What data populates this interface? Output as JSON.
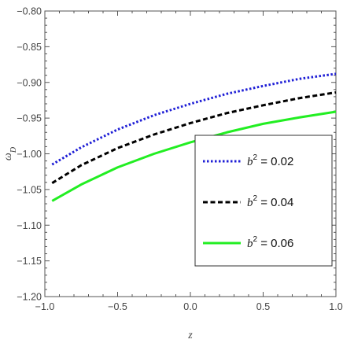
{
  "chart_data": {
    "type": "line",
    "xlabel": "z",
    "ylabel_symbol": "ω",
    "ylabel_subscript": "D",
    "xlim": [
      -1.0,
      1.0
    ],
    "ylim": [
      -1.2,
      -0.8
    ],
    "x_ticks": [
      -1.0,
      -0.5,
      0.0,
      0.5,
      1.0
    ],
    "x_tick_labels": [
      "−1.0",
      "−0.5",
      "0.0",
      "0.5",
      "1.0"
    ],
    "y_ticks": [
      -0.8,
      -0.85,
      -0.9,
      -0.95,
      -1.0,
      -1.05,
      -1.1,
      -1.15,
      -1.2
    ],
    "y_tick_labels": [
      "−0.80",
      "−0.85",
      "−0.90",
      "−0.95",
      "−1.00",
      "−1.05",
      "−1.10",
      "−1.15",
      "−1.20"
    ],
    "grid": false,
    "legend_position": "bottom-right",
    "series": [
      {
        "name": "b² = 0.02",
        "legend_var": "b",
        "legend_exp": "2",
        "legend_value": " = 0.02",
        "color": "#1f1fd6",
        "style": "dotted",
        "x": [
          -0.95,
          -0.75,
          -0.5,
          -0.25,
          0.0,
          0.25,
          0.5,
          0.75,
          1.0
        ],
        "y": [
          -1.015,
          -0.991,
          -0.966,
          -0.946,
          -0.93,
          -0.916,
          -0.905,
          -0.895,
          -0.888
        ]
      },
      {
        "name": "b² = 0.04",
        "legend_var": "b",
        "legend_exp": "2",
        "legend_value": " = 0.04",
        "color": "#000000",
        "style": "dashed",
        "x": [
          -0.95,
          -0.75,
          -0.5,
          -0.25,
          0.0,
          0.25,
          0.5,
          0.75,
          1.0
        ],
        "y": [
          -1.041,
          -1.016,
          -0.992,
          -0.973,
          -0.957,
          -0.943,
          -0.932,
          -0.922,
          -0.914
        ]
      },
      {
        "name": "b² = 0.06",
        "legend_var": "b",
        "legend_exp": "2",
        "legend_value": " = 0.06",
        "color": "#22ee22",
        "style": "solid",
        "x": [
          -0.95,
          -0.75,
          -0.5,
          -0.25,
          0.0,
          0.25,
          0.5,
          0.75,
          1.0
        ],
        "y": [
          -1.066,
          -1.043,
          -1.019,
          -1.0,
          -0.984,
          -0.97,
          -0.958,
          -0.949,
          -0.941
        ]
      }
    ]
  }
}
